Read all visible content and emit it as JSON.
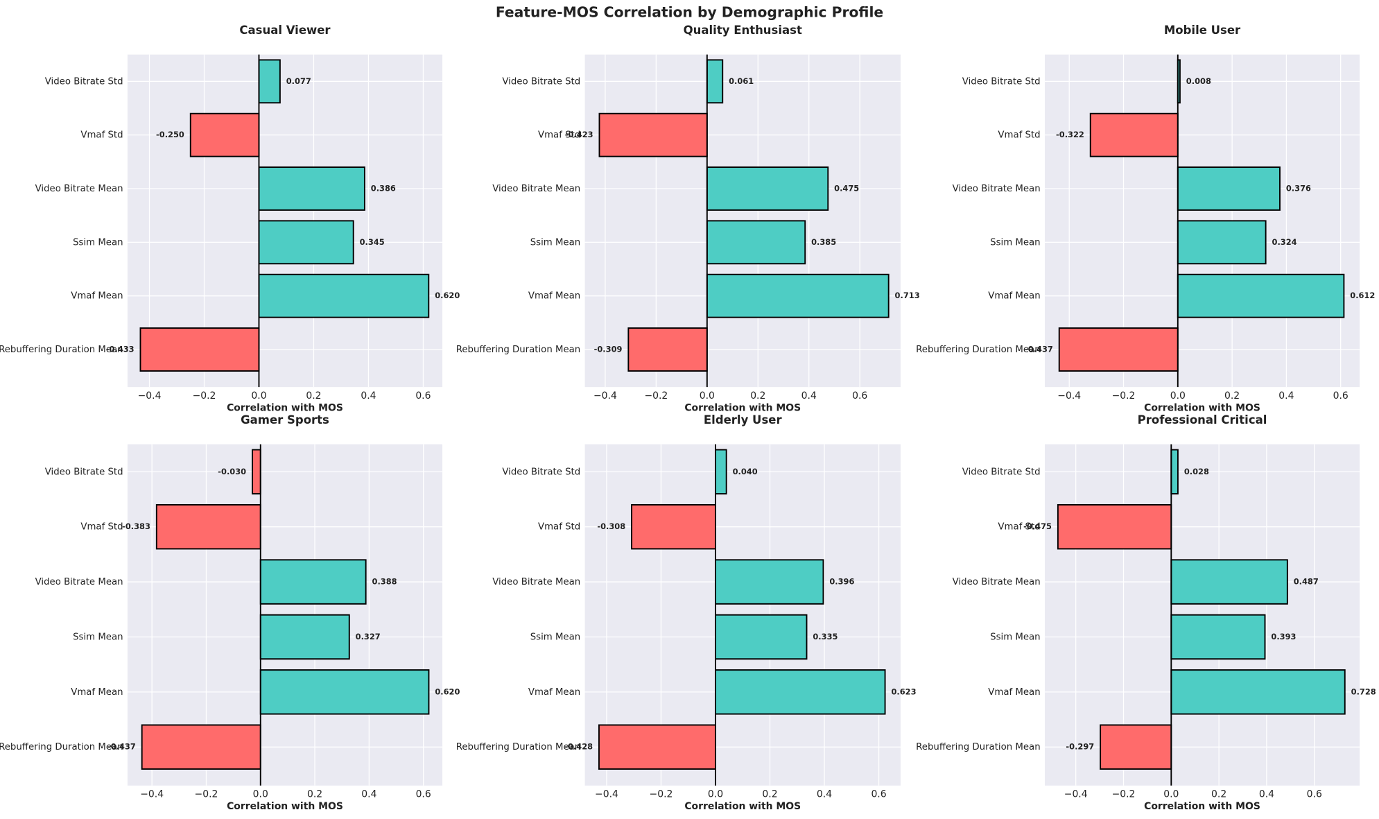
{
  "title": "Feature-MOS Correlation by Demographic Profile",
  "chart_data": [
    {
      "type": "bar",
      "orientation": "horizontal",
      "title": "Casual Viewer",
      "xlabel": "Correlation with MOS",
      "categories": [
        "Rebuffering Duration Mean",
        "Vmaf Mean",
        "Ssim Mean",
        "Video Bitrate Mean",
        "Vmaf Std",
        "Video Bitrate Std"
      ],
      "values": [
        -0.433,
        0.62,
        0.345,
        0.386,
        -0.25,
        0.077
      ],
      "value_labels": [
        "-0.433",
        "0.620",
        "0.345",
        "0.386",
        "-0.250",
        "0.077"
      ],
      "xlim": [
        -0.48,
        0.67
      ],
      "xticks": [
        {
          "value": -0.4,
          "label": "−0.4"
        },
        {
          "value": -0.2,
          "label": "−0.2"
        },
        {
          "value": 0,
          "label": "0.0"
        },
        0.2,
        0.4,
        0.6
      ],
      "grid": true,
      "positive_color": "#4ecdc4",
      "negative_color": "#ff6b6b"
    },
    {
      "type": "bar",
      "orientation": "horizontal",
      "title": "Quality Enthusiast",
      "xlabel": "Correlation with MOS",
      "categories": [
        "Rebuffering Duration Mean",
        "Vmaf Mean",
        "Ssim Mean",
        "Video Bitrate Mean",
        "Vmaf Std",
        "Video Bitrate Std"
      ],
      "values": [
        -0.309,
        0.713,
        0.385,
        0.475,
        -0.423,
        0.061
      ],
      "value_labels": [
        "-0.309",
        "0.713",
        "0.385",
        "0.475",
        "-0.423",
        "0.061"
      ],
      "xlim": [
        -0.48,
        0.76
      ],
      "xticks": [
        {
          "value": -0.4,
          "label": "−0.4"
        },
        {
          "value": -0.2,
          "label": "−0.2"
        },
        {
          "value": 0,
          "label": "0.0"
        },
        0.2,
        0.4,
        0.6
      ],
      "grid": true,
      "positive_color": "#4ecdc4",
      "negative_color": "#ff6b6b"
    },
    {
      "type": "bar",
      "orientation": "horizontal",
      "title": "Mobile User",
      "xlabel": "Correlation with MOS",
      "categories": [
        "Rebuffering Duration Mean",
        "Vmaf Mean",
        "Ssim Mean",
        "Video Bitrate Mean",
        "Vmaf Std",
        "Video Bitrate Std"
      ],
      "values": [
        -0.437,
        0.612,
        0.324,
        0.376,
        -0.322,
        0.008
      ],
      "value_labels": [
        "-0.437",
        "0.612",
        "0.324",
        "0.376",
        "-0.322",
        "0.008"
      ],
      "xlim": [
        -0.49,
        0.67
      ],
      "xticks": [
        {
          "value": -0.4,
          "label": "−0.4"
        },
        {
          "value": -0.2,
          "label": "−0.2"
        },
        {
          "value": 0,
          "label": "0.0"
        },
        0.2,
        0.4,
        0.6
      ],
      "grid": true,
      "positive_color": "#4ecdc4",
      "negative_color": "#ff6b6b"
    },
    {
      "type": "bar",
      "orientation": "horizontal",
      "title": "Gamer Sports",
      "xlabel": "Correlation with MOS",
      "categories": [
        "Rebuffering Duration Mean",
        "Vmaf Mean",
        "Ssim Mean",
        "Video Bitrate Mean",
        "Vmaf Std",
        "Video Bitrate Std"
      ],
      "values": [
        -0.437,
        0.62,
        0.327,
        0.388,
        -0.383,
        -0.03
      ],
      "value_labels": [
        "-0.437",
        "0.620",
        "0.327",
        "0.388",
        "-0.383",
        "-0.030"
      ],
      "xlim": [
        -0.49,
        0.67
      ],
      "xticks": [
        {
          "value": -0.4,
          "label": "−0.4"
        },
        {
          "value": -0.2,
          "label": "−0.2"
        },
        {
          "value": 0,
          "label": "0.0"
        },
        0.2,
        0.4,
        0.6
      ],
      "grid": true,
      "positive_color": "#4ecdc4",
      "negative_color": "#ff6b6b"
    },
    {
      "type": "bar",
      "orientation": "horizontal",
      "title": "Elderly User",
      "xlabel": "Correlation with MOS",
      "categories": [
        "Rebuffering Duration Mean",
        "Vmaf Mean",
        "Ssim Mean",
        "Video Bitrate Mean",
        "Vmaf Std",
        "Video Bitrate Std"
      ],
      "values": [
        -0.428,
        0.623,
        0.335,
        0.396,
        -0.308,
        0.04
      ],
      "value_labels": [
        "-0.428",
        "0.623",
        "0.335",
        "0.396",
        "-0.308",
        "0.040"
      ],
      "xlim": [
        -0.48,
        0.68
      ],
      "xticks": [
        {
          "value": -0.4,
          "label": "−0.4"
        },
        {
          "value": -0.2,
          "label": "−0.2"
        },
        {
          "value": 0,
          "label": "0.0"
        },
        0.2,
        0.4,
        0.6
      ],
      "grid": true,
      "positive_color": "#4ecdc4",
      "negative_color": "#ff6b6b"
    },
    {
      "type": "bar",
      "orientation": "horizontal",
      "title": "Professional Critical",
      "xlabel": "Correlation with MOS",
      "categories": [
        "Rebuffering Duration Mean",
        "Vmaf Mean",
        "Ssim Mean",
        "Video Bitrate Mean",
        "Vmaf Std",
        "Video Bitrate Std"
      ],
      "values": [
        -0.297,
        0.728,
        0.393,
        0.487,
        -0.475,
        0.028
      ],
      "value_labels": [
        "-0.297",
        "0.728",
        "0.393",
        "0.487",
        "-0.475",
        "0.028"
      ],
      "xlim": [
        -0.53,
        0.79
      ],
      "xticks": [
        {
          "value": -0.4,
          "label": "−0.4"
        },
        {
          "value": -0.2,
          "label": "−0.2"
        },
        {
          "value": 0,
          "label": "0.0"
        },
        0.2,
        0.4,
        0.6
      ],
      "grid": true,
      "positive_color": "#4ecdc4",
      "negative_color": "#ff6b6b"
    }
  ]
}
